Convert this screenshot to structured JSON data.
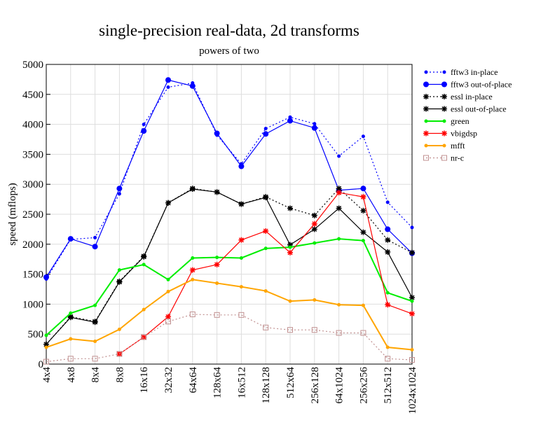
{
  "chart_data": {
    "type": "line",
    "title": "single-precision real-data, 2d transforms",
    "subtitle": "powers of two",
    "xlabel": "",
    "ylabel": "speed (mflops)",
    "ylim": [
      0,
      5000
    ],
    "yticks": [
      0,
      500,
      1000,
      1500,
      2000,
      2500,
      3000,
      3500,
      4000,
      4500,
      5000
    ],
    "grid": true,
    "legend_position": "right",
    "categories": [
      "4x4",
      "4x8",
      "8x4",
      "8x8",
      "16x16",
      "32x32",
      "64x64",
      "128x64",
      "16x512",
      "128x128",
      "512x64",
      "256x128",
      "64x1024",
      "256x256",
      "512x512",
      "1024x1024"
    ],
    "series": [
      {
        "name": "fftw3 in-place",
        "color": "#0000ff",
        "dash": "dotted",
        "marker": "dot-small",
        "values": [
          1420,
          2080,
          2110,
          2840,
          4000,
          4620,
          4690,
          3820,
          3340,
          3930,
          4120,
          4010,
          3470,
          3800,
          2700,
          2280
        ]
      },
      {
        "name": "fftw3 out-of-place",
        "color": "#0000ff",
        "dash": "solid",
        "marker": "dot-large",
        "values": [
          1450,
          2090,
          1960,
          2930,
          3890,
          4740,
          4640,
          3850,
          3300,
          3840,
          4060,
          3940,
          2900,
          2930,
          2250,
          1850
        ]
      },
      {
        "name": "essl in-place",
        "color": "#000000",
        "dash": "dotted",
        "marker": "star",
        "values": [
          330,
          790,
          710,
          1380,
          1800,
          2690,
          2930,
          2870,
          2670,
          2790,
          2600,
          2480,
          2930,
          2560,
          2070,
          1860
        ]
      },
      {
        "name": "essl out-of-place",
        "color": "#000000",
        "dash": "solid",
        "marker": "star",
        "values": [
          330,
          780,
          700,
          1370,
          1790,
          2690,
          2920,
          2870,
          2670,
          2780,
          1990,
          2250,
          2600,
          2200,
          1870,
          1110
        ]
      },
      {
        "name": "green",
        "color": "#00ee00",
        "dash": "solid",
        "marker": "dot-small",
        "values": [
          480,
          850,
          980,
          1570,
          1660,
          1410,
          1770,
          1780,
          1770,
          1930,
          1950,
          2020,
          2090,
          2060,
          1190,
          1050
        ]
      },
      {
        "name": "vbigdsp",
        "color": "#ff0000",
        "dash": "solid",
        "marker": "star",
        "values": [
          null,
          null,
          null,
          170,
          450,
          790,
          1570,
          1660,
          2070,
          2220,
          1860,
          2340,
          2860,
          2790,
          990,
          840
        ]
      },
      {
        "name": "mfft",
        "color": "#ffa500",
        "dash": "solid",
        "marker": "dot-small",
        "values": [
          280,
          420,
          380,
          580,
          910,
          1210,
          1410,
          1350,
          1290,
          1220,
          1050,
          1070,
          990,
          980,
          280,
          240
        ]
      },
      {
        "name": "nr-c",
        "color": "#c09090",
        "dash": "dotted",
        "marker": "square",
        "values": [
          40,
          90,
          90,
          170,
          450,
          710,
          830,
          820,
          820,
          610,
          570,
          570,
          520,
          520,
          90,
          70
        ]
      }
    ]
  }
}
